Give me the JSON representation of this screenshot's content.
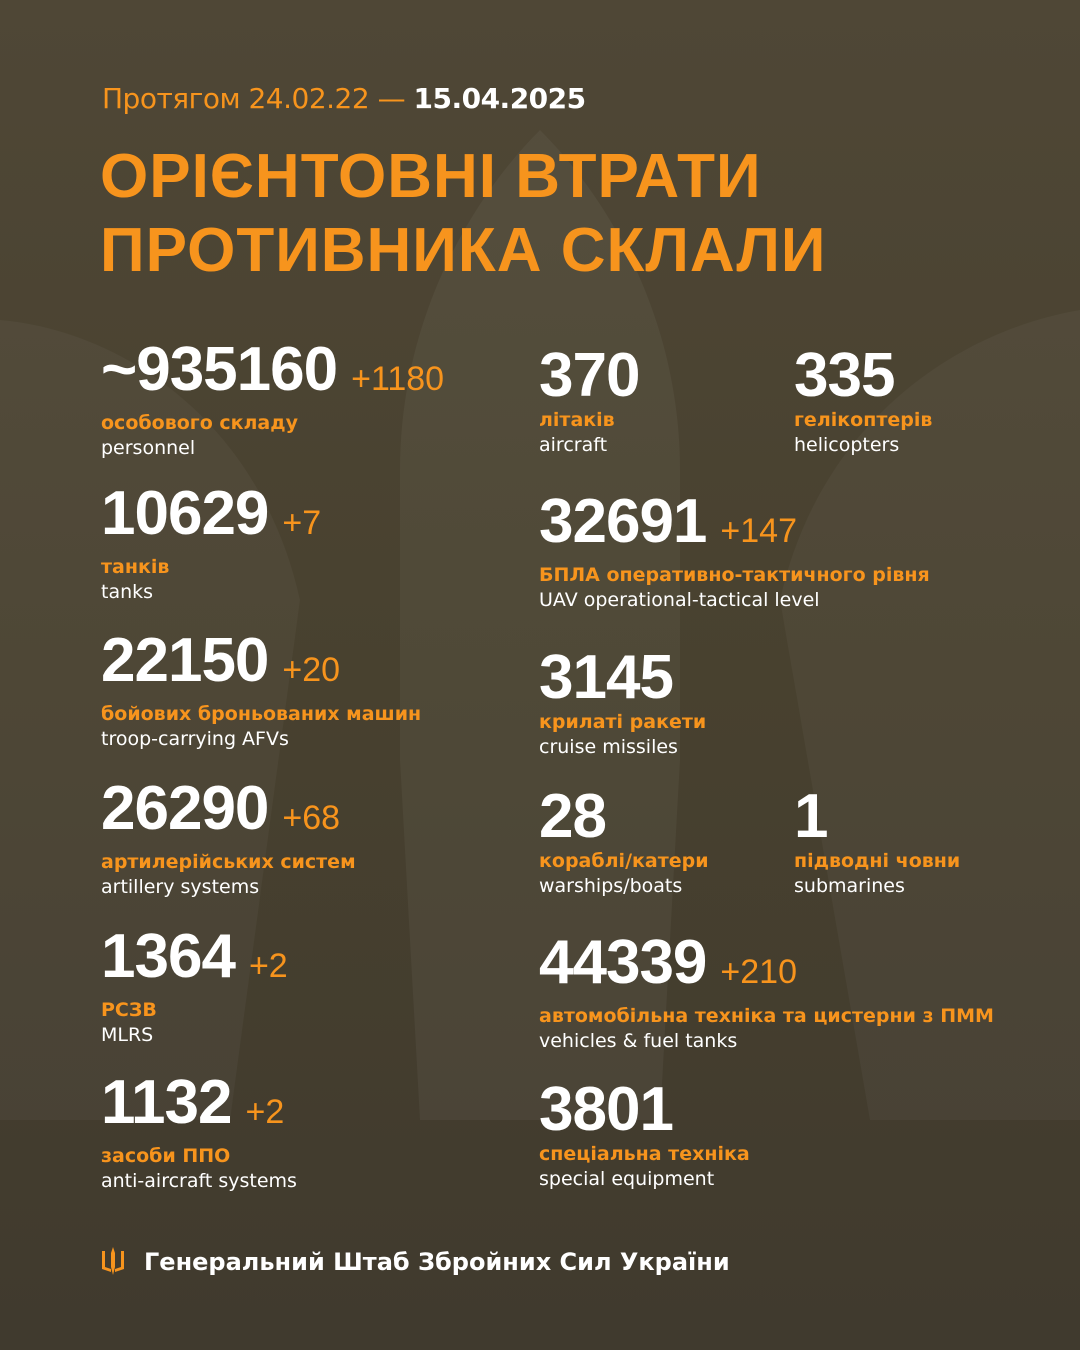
{
  "header": {
    "period_prefix": "Протягом 24.02.22 —",
    "period_date": "15.04.2025",
    "title_line1": "ОРІЄНТОВНІ ВТРАТИ",
    "title_line2": "ПРОТИВНИКА СКЛАЛИ"
  },
  "colors": {
    "accent": "#f7941d",
    "background": "#4a4332",
    "text": "#ffffff"
  },
  "stats": {
    "personnel": {
      "value": "~935160",
      "delta": "+1180",
      "ua": "особового складу",
      "en": "personnel"
    },
    "tanks": {
      "value": "10629",
      "delta": "+7",
      "ua": "танків",
      "en": "tanks"
    },
    "afv": {
      "value": "22150",
      "delta": "+20",
      "ua": "бойових броньованих машин",
      "en": "troop-carrying AFVs"
    },
    "artillery": {
      "value": "26290",
      "delta": "+68",
      "ua": "артилерійських систем",
      "en": "artillery systems"
    },
    "mlrs": {
      "value": "1364",
      "delta": "+2",
      "ua": "РСЗВ",
      "en": "MLRS"
    },
    "air_defense": {
      "value": "1132",
      "delta": "+2",
      "ua": "засоби ППО",
      "en": "anti-aircraft systems"
    },
    "aircraft": {
      "value": "370",
      "ua": "літаків",
      "en": "aircraft"
    },
    "helicopters": {
      "value": "335",
      "ua": "гелікоптерів",
      "en": "helicopters"
    },
    "uav": {
      "value": "32691",
      "delta": "+147",
      "ua": "БПЛА оперативно-тактичного рівня",
      "en": "UAV operational-tactical level"
    },
    "cruise_missiles": {
      "value": "3145",
      "ua": "крилаті ракети",
      "en": "cruise missiles"
    },
    "ships": {
      "value": "28",
      "ua": "кораблі/катери",
      "en": "warships/boats"
    },
    "submarines": {
      "value": "1",
      "ua": "підводні човни",
      "en": "submarines"
    },
    "vehicles": {
      "value": "44339",
      "delta": "+210",
      "ua": "автомобільна техніка та цистерни з ПММ",
      "en": "vehicles & fuel tanks"
    },
    "special": {
      "value": "3801",
      "ua": "спеціальна техніка",
      "en": "special equipment"
    }
  },
  "footer": {
    "icon": "trident-icon",
    "text": "Генеральний Штаб Збройних Сил України"
  }
}
